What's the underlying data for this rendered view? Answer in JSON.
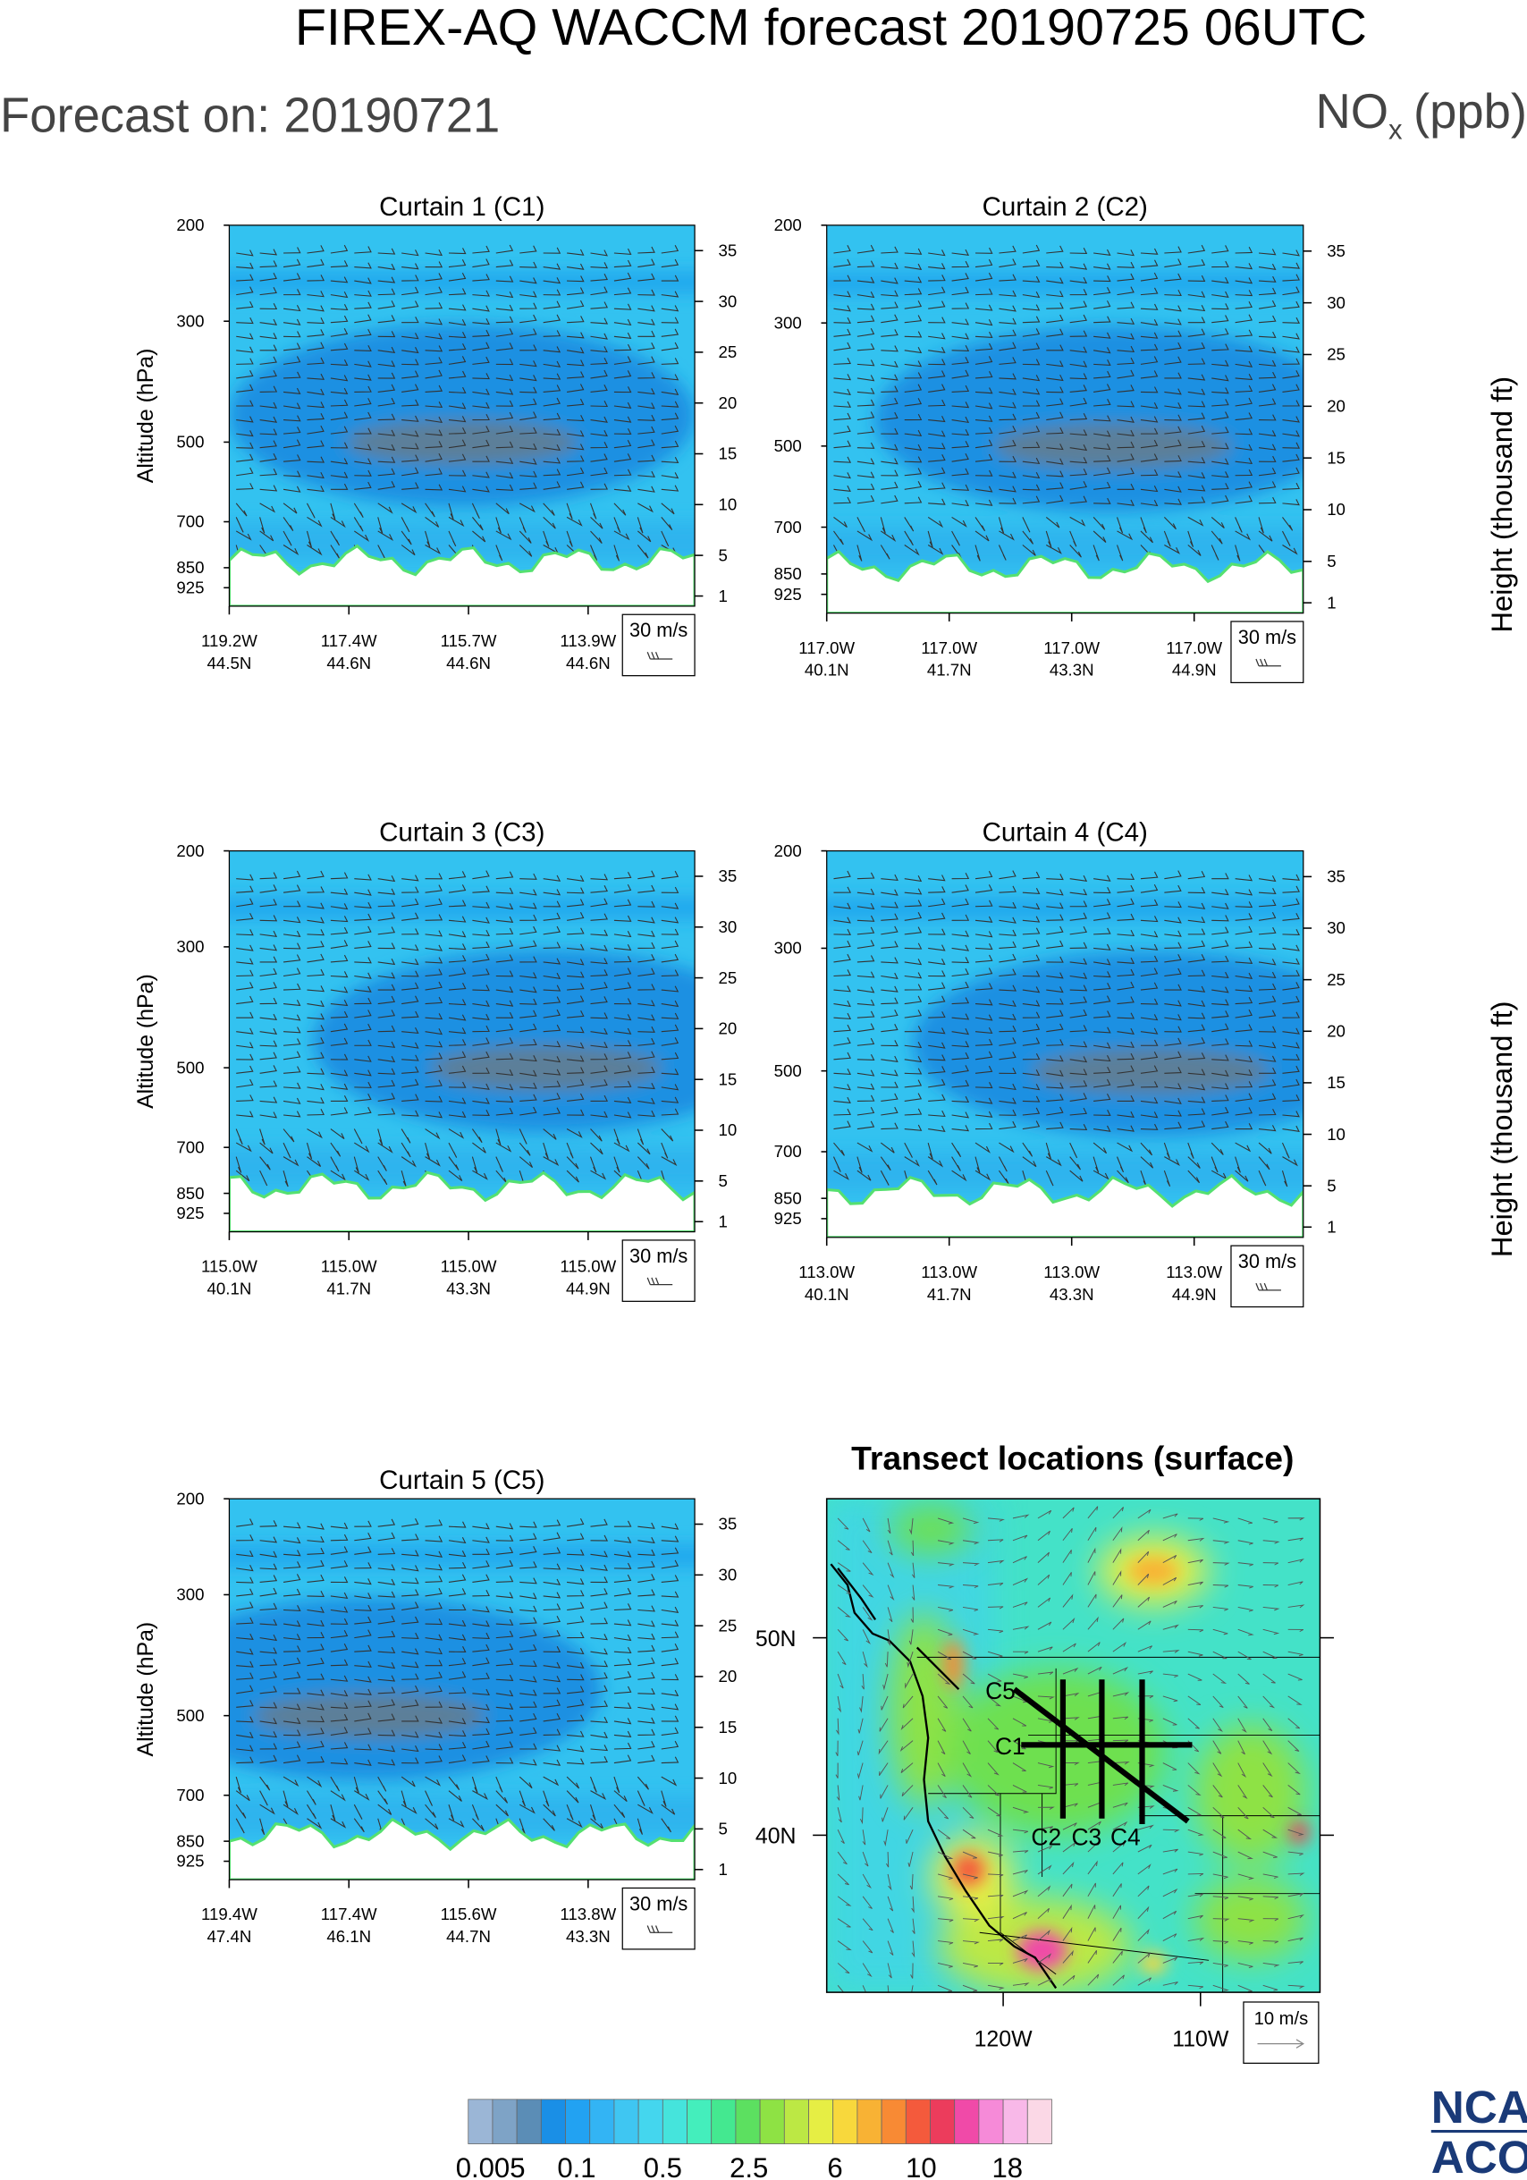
{
  "header": {
    "title": "FIREX-AQ WACCM forecast 20190725 06UTC",
    "forecast_on": "Forecast on: 20190721",
    "species": "NO",
    "species_subscript": "x",
    "units": "(ppb)"
  },
  "y_axis_label": "Altitude (hPa)",
  "y2_axis_label": "Height (thousand ft)",
  "pressure_ticks": [
    200,
    300,
    500,
    700,
    850,
    925
  ],
  "pressure_range": [
    200,
    1000
  ],
  "height_ticks": [
    35,
    30,
    25,
    20,
    15,
    10,
    5,
    1
  ],
  "height_range": [
    0,
    37.5
  ],
  "wind_legend": "30 m/s",
  "curtains": [
    {
      "title": "Curtain 1 (C1)",
      "x_labels": [
        [
          "119.2W",
          "44.5N"
        ],
        [
          "117.4W",
          "44.6N"
        ],
        [
          "115.7W",
          "44.6N"
        ],
        [
          "113.9W",
          "44.6N"
        ]
      ]
    },
    {
      "title": "Curtain 2 (C2)",
      "x_labels": [
        [
          "117.0W",
          "40.1N"
        ],
        [
          "117.0W",
          "41.7N"
        ],
        [
          "117.0W",
          "43.3N"
        ],
        [
          "117.0W",
          "44.9N"
        ]
      ]
    },
    {
      "title": "Curtain 3 (C3)",
      "x_labels": [
        [
          "115.0W",
          "40.1N"
        ],
        [
          "115.0W",
          "41.7N"
        ],
        [
          "115.0W",
          "43.3N"
        ],
        [
          "115.0W",
          "44.9N"
        ]
      ]
    },
    {
      "title": "Curtain 4 (C4)",
      "x_labels": [
        [
          "113.0W",
          "40.1N"
        ],
        [
          "113.0W",
          "41.7N"
        ],
        [
          "113.0W",
          "43.3N"
        ],
        [
          "113.0W",
          "44.9N"
        ]
      ]
    },
    {
      "title": "Curtain 5 (C5)",
      "x_labels": [
        [
          "119.4W",
          "47.4N"
        ],
        [
          "117.4W",
          "46.1N"
        ],
        [
          "115.6W",
          "44.7N"
        ],
        [
          "113.8W",
          "43.3N"
        ]
      ]
    }
  ],
  "map": {
    "title": "Transect locations (surface)",
    "lat_labels": [
      "50N",
      "40N"
    ],
    "lon_labels": [
      "120W",
      "110W"
    ],
    "transects": [
      "C1",
      "C2",
      "C3",
      "C4",
      "C5"
    ],
    "wind_legend": "10 m/s"
  },
  "colorbar": {
    "labels": [
      0.005,
      0.1,
      0.5,
      2.5,
      6,
      10,
      18
    ],
    "colors": [
      "#9bb6d6",
      "#7ea3c6",
      "#5b8db6",
      "#1a8fe6",
      "#22a2f2",
      "#33b4f4",
      "#3fc6f2",
      "#44d6ee",
      "#45e4dc",
      "#44eebc",
      "#44e890",
      "#5ce060",
      "#8ee244",
      "#bce844",
      "#e6ee44",
      "#f8d83c",
      "#f8b234",
      "#f88a34",
      "#f45a3c",
      "#ec3c5c",
      "#f04aa8",
      "#f68ad8",
      "#f8b8e8",
      "#fbd8e6"
    ]
  },
  "logo": [
    "NCA",
    "ACO"
  ]
}
